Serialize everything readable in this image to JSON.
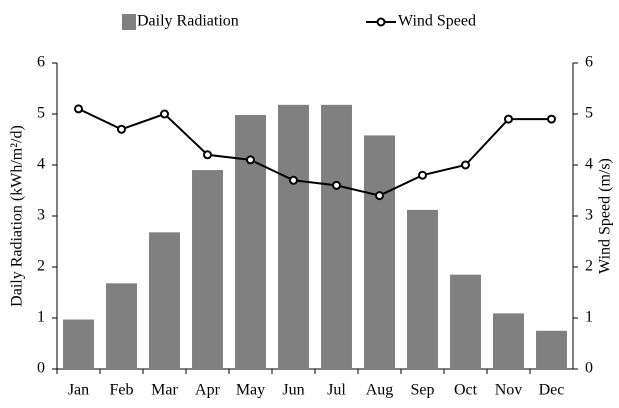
{
  "chart_data": {
    "type": "bar_line",
    "categories": [
      "Jan",
      "Feb",
      "Mar",
      "Apr",
      "May",
      "Jun",
      "Jul",
      "Aug",
      "Sep",
      "Oct",
      "Nov",
      "Dec"
    ],
    "series": [
      {
        "name": "Daily Radiation",
        "color": "#808080",
        "type": "bar",
        "values": [
          0.97,
          1.68,
          2.68,
          3.9,
          4.98,
          5.18,
          5.18,
          4.58,
          3.12,
          1.85,
          1.09,
          0.75
        ]
      },
      {
        "name": "Wind Speed",
        "color": "#000000",
        "type": "line",
        "axis": "y2",
        "values": [
          5.1,
          4.7,
          5.0,
          4.2,
          4.1,
          3.7,
          3.6,
          3.4,
          3.8,
          4.0,
          4.9,
          4.9
        ]
      }
    ],
    "ylabel": "Daily Radiation (kWh/m²/d)",
    "y2label": "Wind Speed (m/s)",
    "ylim": [
      0,
      6
    ],
    "yticks": [
      0,
      1,
      2,
      3,
      4,
      5,
      6
    ],
    "y2lim": [
      0,
      6
    ],
    "y2ticks": [
      0,
      1,
      2,
      3,
      4,
      5,
      6
    ],
    "grid": false
  }
}
